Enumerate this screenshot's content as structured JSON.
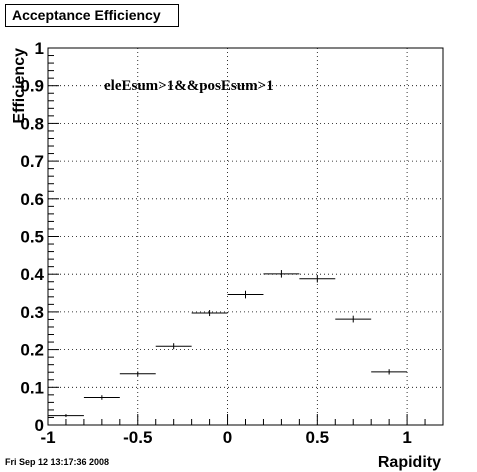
{
  "canvas_title": "Acceptance Efficiency",
  "footer_timestamp": "Fri Sep 12 13:17:36 2008",
  "chart_data": {
    "type": "scatter",
    "title": "Acceptance Efficiency",
    "xlabel": "Rapidity",
    "ylabel": "Efficiency",
    "xlim": [
      -1,
      1.2
    ],
    "ylim": [
      0,
      1
    ],
    "x_ticks": [
      {
        "value": -1,
        "label": "-1"
      },
      {
        "value": -0.5,
        "label": "-0.5"
      },
      {
        "value": 0,
        "label": "0"
      },
      {
        "value": 0.5,
        "label": "0.5"
      },
      {
        "value": 1,
        "label": "1"
      }
    ],
    "y_ticks": [
      {
        "value": 0,
        "label": "0"
      },
      {
        "value": 0.1,
        "label": "0.1"
      },
      {
        "value": 0.2,
        "label": "0.2"
      },
      {
        "value": 0.3,
        "label": "0.3"
      },
      {
        "value": 0.4,
        "label": "0.4"
      },
      {
        "value": 0.5,
        "label": "0.5"
      },
      {
        "value": 0.6,
        "label": "0.6"
      },
      {
        "value": 0.7,
        "label": "0.7"
      },
      {
        "value": 0.8,
        "label": "0.8"
      },
      {
        "value": 0.9,
        "label": "0.9"
      },
      {
        "value": 1,
        "label": "1"
      }
    ],
    "grid": true,
    "annotation": "eleEsum>1&&posEsum>1",
    "series": [
      {
        "points": [
          {
            "x": -0.9,
            "xerr": 0.1,
            "y": 0.025,
            "yerr": 0.004
          },
          {
            "x": -0.7,
            "xerr": 0.1,
            "y": 0.073,
            "yerr": 0.006
          },
          {
            "x": -0.5,
            "xerr": 0.1,
            "y": 0.136,
            "yerr": 0.006
          },
          {
            "x": -0.3,
            "xerr": 0.1,
            "y": 0.209,
            "yerr": 0.008
          },
          {
            "x": -0.1,
            "xerr": 0.1,
            "y": 0.297,
            "yerr": 0.008
          },
          {
            "x": 0.1,
            "xerr": 0.1,
            "y": 0.346,
            "yerr": 0.01
          },
          {
            "x": 0.3,
            "xerr": 0.1,
            "y": 0.401,
            "yerr": 0.01
          },
          {
            "x": 0.5,
            "xerr": 0.1,
            "y": 0.388,
            "yerr": 0.01
          },
          {
            "x": 0.7,
            "xerr": 0.1,
            "y": 0.281,
            "yerr": 0.009
          },
          {
            "x": 0.9,
            "xerr": 0.1,
            "y": 0.141,
            "yerr": 0.007
          }
        ]
      }
    ]
  }
}
